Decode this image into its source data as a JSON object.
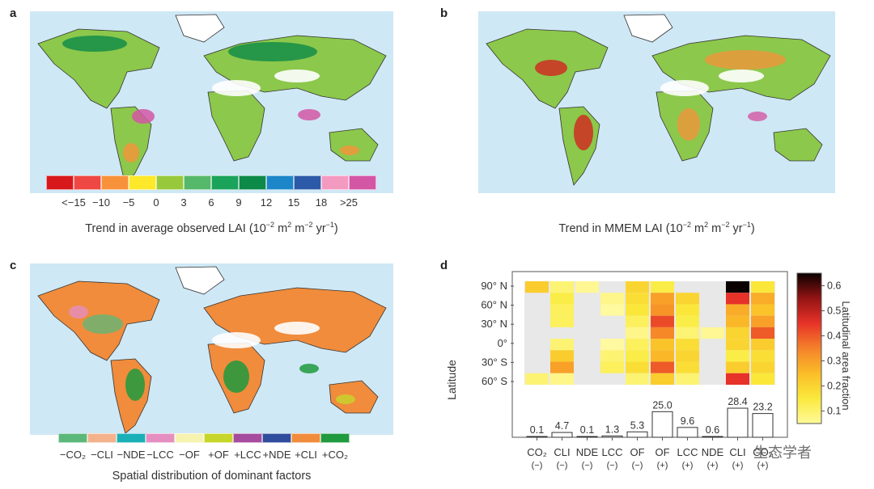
{
  "panels": {
    "a": {
      "letter": "a",
      "caption": "Trend in average observed LAI (10",
      "caption_exp1": "−2",
      "caption_mid": " m",
      "caption_exp2": "2",
      "caption_mid2": " m",
      "caption_exp3": "−2",
      "caption_mid3": " yr",
      "caption_exp4": "−1",
      "caption_end": ")",
      "legend_colors": [
        "#d7191c",
        "#ef4743",
        "#f7923a",
        "#fde82a",
        "#98c93c",
        "#56b86a",
        "#1aa35a",
        "#0d8a48",
        "#1c86c8",
        "#2d5aa8",
        "#f39ac1",
        "#d357a4"
      ],
      "legend_ticks": [
        "<−15",
        "−10",
        "−5",
        "0",
        "3",
        "6",
        "9",
        "12",
        "15",
        "18",
        ">25"
      ]
    },
    "b": {
      "letter": "b",
      "caption": "Trend in MMEM LAI (10",
      "caption_exp1": "−2",
      "caption_mid": " m",
      "caption_exp2": "2",
      "caption_mid2": " m",
      "caption_exp3": "−2",
      "caption_mid3": " yr",
      "caption_exp4": "−1",
      "caption_end": ")"
    },
    "c": {
      "letter": "c",
      "caption": "Spatial distribution of dominant factors",
      "legend_colors": [
        "#5cb87a",
        "#f3b28c",
        "#1ab0b8",
        "#e58fc1",
        "#f6f2b0",
        "#c7d62a",
        "#a54c9e",
        "#2f4d9c",
        "#f08c3c",
        "#1f9a3e"
      ],
      "legend_labels": [
        "−CO₂",
        "−CLI",
        "−NDE",
        "−LCC",
        "−OF",
        "+OF",
        "+LCC",
        "+NDE",
        "+CLI",
        "+CO₂"
      ]
    },
    "d": {
      "letter": "d",
      "ylabel": "Latitude",
      "colorbar_label": "Latitudinal area fraction",
      "watermark": "生态学者"
    }
  },
  "chart_data": {
    "type": "heatmap",
    "ylabel": "Latitude",
    "lat_ticks": [
      "90° N",
      "60° N",
      "30° N",
      "0°",
      "30° S",
      "60° S"
    ],
    "categories": [
      {
        "name": "CO₂",
        "sign": "(−)"
      },
      {
        "name": "CLI",
        "sign": "(−)"
      },
      {
        "name": "NDE",
        "sign": "(−)"
      },
      {
        "name": "LCC",
        "sign": "(−)"
      },
      {
        "name": "OF",
        "sign": "(−)"
      },
      {
        "name": "OF",
        "sign": "(+)"
      },
      {
        "name": "LCC",
        "sign": "(+)"
      },
      {
        "name": "NDE",
        "sign": "(+)"
      },
      {
        "name": "CLI",
        "sign": "(+)"
      },
      {
        "name": "CO₂",
        "sign": "(+)"
      }
    ],
    "bar_values": [
      0.1,
      4.7,
      0.1,
      1.3,
      5.3,
      25.0,
      9.6,
      0.6,
      28.4,
      23.2
    ],
    "bar_labels": [
      "0.1",
      "4.7",
      "0.1",
      "1.3",
      "5.3",
      "25.0",
      "9.6",
      "0.6",
      "28.4",
      "23.2"
    ],
    "colorbar": {
      "min": 0.05,
      "max": 0.65,
      "ticks": [
        0.1,
        0.2,
        0.3,
        0.4,
        0.5,
        0.6
      ],
      "tick_labels": [
        "0.1",
        "0.2",
        "0.3",
        "0.4",
        "0.5",
        "0.6"
      ],
      "label": "Latitudinal area fraction"
    },
    "rows_top_to_bottom": 9,
    "matrix": [
      [
        0.22,
        0.1,
        0.07,
        null,
        0.2,
        0.14,
        null,
        null,
        0.65,
        0.16
      ],
      [
        null,
        0.14,
        null,
        0.08,
        0.18,
        0.3,
        0.2,
        null,
        0.45,
        0.28
      ],
      [
        null,
        0.12,
        null,
        0.06,
        0.16,
        0.32,
        0.16,
        null,
        0.28,
        0.24
      ],
      [
        null,
        0.12,
        null,
        null,
        0.12,
        0.42,
        0.14,
        null,
        0.26,
        0.3
      ],
      [
        null,
        null,
        null,
        null,
        0.08,
        0.34,
        0.1,
        0.07,
        0.2,
        0.4
      ],
      [
        null,
        0.1,
        null,
        0.06,
        0.12,
        0.24,
        0.18,
        null,
        0.2,
        0.22
      ],
      [
        null,
        0.22,
        null,
        0.1,
        0.14,
        0.26,
        0.2,
        null,
        0.14,
        0.18
      ],
      [
        null,
        0.3,
        null,
        0.12,
        0.18,
        0.4,
        0.18,
        null,
        0.22,
        0.2
      ],
      [
        0.1,
        0.08,
        null,
        null,
        0.1,
        0.22,
        0.1,
        null,
        0.45,
        0.16
      ]
    ]
  }
}
